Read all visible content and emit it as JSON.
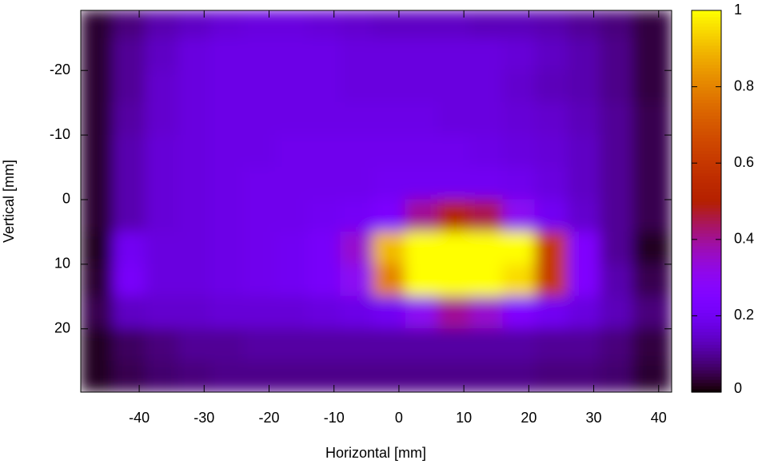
{
  "chart_data": {
    "type": "heatmap",
    "xlabel": "Horizontal [mm]",
    "ylabel": "Vertical [mm]",
    "xlim": [
      -49,
      42
    ],
    "ylim": [
      29.8,
      -29.3
    ],
    "xticks": [
      -40,
      -30,
      -20,
      -10,
      0,
      10,
      20,
      30,
      40
    ],
    "yticks": [
      -20,
      -10,
      0,
      10,
      20
    ],
    "x_edges": [
      -49,
      -44,
      -39,
      -34,
      -29,
      -24,
      -19,
      -14,
      -9,
      -4,
      1,
      6,
      11,
      16,
      21,
      26,
      31,
      36,
      42
    ],
    "y_edges": [
      -29.3,
      -25,
      -20,
      -15,
      -10,
      -5,
      0,
      5,
      10,
      15,
      20,
      25,
      29.8
    ],
    "colormap": "gnuplot",
    "cblim": [
      0,
      1
    ],
    "cbticks": [
      0,
      0.2,
      0.4,
      0.6,
      0.8,
      1
    ],
    "z": [
      [
        0.03,
        0.08,
        0.12,
        0.14,
        0.16,
        0.17,
        0.17,
        0.16,
        0.15,
        0.14,
        0.14,
        0.14,
        0.13,
        0.13,
        0.12,
        0.1,
        0.08,
        0.04
      ],
      [
        0.03,
        0.1,
        0.14,
        0.17,
        0.18,
        0.18,
        0.18,
        0.18,
        0.17,
        0.17,
        0.17,
        0.17,
        0.17,
        0.16,
        0.14,
        0.12,
        0.09,
        0.04
      ],
      [
        0.03,
        0.1,
        0.15,
        0.17,
        0.18,
        0.18,
        0.18,
        0.18,
        0.17,
        0.17,
        0.17,
        0.17,
        0.17,
        0.15,
        0.13,
        0.12,
        0.09,
        0.04
      ],
      [
        0.03,
        0.11,
        0.15,
        0.17,
        0.18,
        0.18,
        0.18,
        0.18,
        0.18,
        0.18,
        0.18,
        0.17,
        0.17,
        0.16,
        0.15,
        0.13,
        0.1,
        0.05
      ],
      [
        0.03,
        0.12,
        0.16,
        0.17,
        0.18,
        0.18,
        0.19,
        0.19,
        0.19,
        0.19,
        0.19,
        0.19,
        0.18,
        0.17,
        0.16,
        0.14,
        0.1,
        0.05
      ],
      [
        0.03,
        0.12,
        0.16,
        0.17,
        0.18,
        0.19,
        0.19,
        0.19,
        0.19,
        0.2,
        0.2,
        0.2,
        0.2,
        0.19,
        0.17,
        0.14,
        0.1,
        0.05
      ],
      [
        0.03,
        0.12,
        0.16,
        0.17,
        0.18,
        0.19,
        0.19,
        0.2,
        0.21,
        0.24,
        0.4,
        0.5,
        0.45,
        0.3,
        0.2,
        0.15,
        0.1,
        0.05
      ],
      [
        0.02,
        0.2,
        0.17,
        0.17,
        0.18,
        0.19,
        0.2,
        0.22,
        0.35,
        0.9,
        1,
        1,
        1,
        1,
        0.6,
        0.25,
        0.1,
        0.02
      ],
      [
        0.03,
        0.22,
        0.17,
        0.17,
        0.18,
        0.19,
        0.2,
        0.22,
        0.3,
        0.8,
        1,
        1,
        1,
        0.95,
        0.6,
        0.25,
        0.12,
        0.05
      ],
      [
        0.05,
        0.14,
        0.15,
        0.15,
        0.16,
        0.16,
        0.16,
        0.17,
        0.18,
        0.2,
        0.3,
        0.4,
        0.35,
        0.25,
        0.2,
        0.17,
        0.13,
        0.08
      ],
      [
        0.02,
        0.06,
        0.08,
        0.1,
        0.1,
        0.11,
        0.11,
        0.11,
        0.11,
        0.11,
        0.11,
        0.11,
        0.11,
        0.11,
        0.1,
        0.1,
        0.08,
        0.04
      ],
      [
        0.02,
        0.05,
        0.07,
        0.08,
        0.09,
        0.09,
        0.09,
        0.09,
        0.09,
        0.09,
        0.09,
        0.09,
        0.09,
        0.09,
        0.08,
        0.08,
        0.07,
        0.03
      ]
    ]
  }
}
